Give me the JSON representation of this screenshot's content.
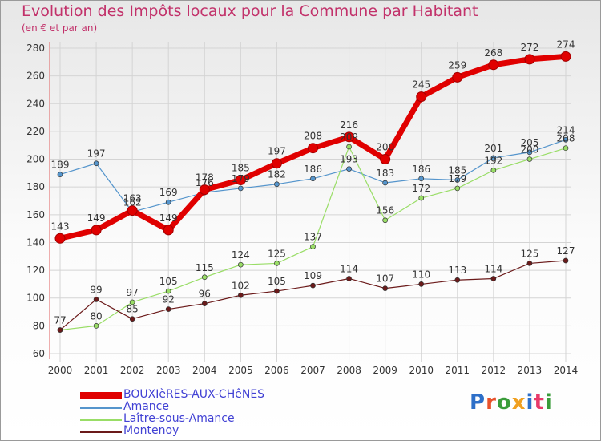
{
  "header": {
    "title": "Evolution des Impôts locaux pour la Commune par Habitant",
    "subtitle": "(en € et par an)"
  },
  "logo": {
    "text": "Proxiti",
    "letter_colors": [
      "#2d6fc8",
      "#e8512a",
      "#3a9c3a",
      "#f0a020",
      "#2d6fc8",
      "#e83a6a",
      "#3a9c3a"
    ]
  },
  "chart_data": {
    "type": "line",
    "title": "Evolution des Impôts locaux pour la Commune par Habitant",
    "subtitle": "(en € et par an)",
    "xlabel": "",
    "ylabel": "",
    "x": [
      2000,
      2001,
      2002,
      2003,
      2004,
      2005,
      2006,
      2007,
      2008,
      2009,
      2010,
      2011,
      2012,
      2013,
      2014
    ],
    "ylim": [
      60,
      280
    ],
    "yticks": [
      60,
      80,
      100,
      120,
      140,
      160,
      180,
      200,
      220,
      240,
      260,
      280
    ],
    "grid": true,
    "legend_position": "bottom-left",
    "series": [
      {
        "name": "BOUXIèRES-AUX-CHêNES",
        "color": "#e00000",
        "bold": true,
        "values": [
          143,
          149,
          163,
          149,
          178,
          185,
          197,
          208,
          216,
          200,
          245,
          259,
          268,
          272,
          274
        ],
        "labels": [
          "143",
          "149",
          "163",
          "149",
          "178",
          "185",
          "197",
          "208",
          "216",
          "200",
          "245",
          "259",
          "268",
          "272",
          "274"
        ]
      },
      {
        "name": "Amance",
        "color": "#5595cc",
        "bold": false,
        "values": [
          189,
          197,
          162,
          169,
          176,
          179,
          182,
          186,
          193,
          183,
          186,
          185,
          201,
          205,
          214
        ],
        "labels": [
          "189",
          "197",
          "162",
          "169",
          "176",
          "179",
          "182",
          "186",
          "193",
          "183",
          "186",
          "185",
          "201",
          "205",
          "214"
        ]
      },
      {
        "name": "Laître-sous-Amance",
        "color": "#99dd66",
        "bold": false,
        "values": [
          77,
          80,
          97,
          105,
          115,
          124,
          125,
          137,
          209,
          156,
          172,
          179,
          192,
          200,
          208
        ],
        "labels": [
          "77",
          "80",
          "97",
          "105",
          "115",
          "124",
          "125",
          "137",
          "209",
          "156",
          "172",
          "179",
          "192",
          "200",
          "208"
        ]
      },
      {
        "name": "Montenoy",
        "color": "#6b1a1a",
        "bold": false,
        "values": [
          77,
          99,
          85,
          92,
          96,
          102,
          105,
          109,
          114,
          107,
          110,
          113,
          114,
          125,
          127
        ],
        "labels": [
          "77",
          "99",
          "85",
          "92",
          "96",
          "102",
          "105",
          "109",
          "114",
          "107",
          "110",
          "113",
          "114",
          "125",
          "127"
        ]
      }
    ]
  }
}
